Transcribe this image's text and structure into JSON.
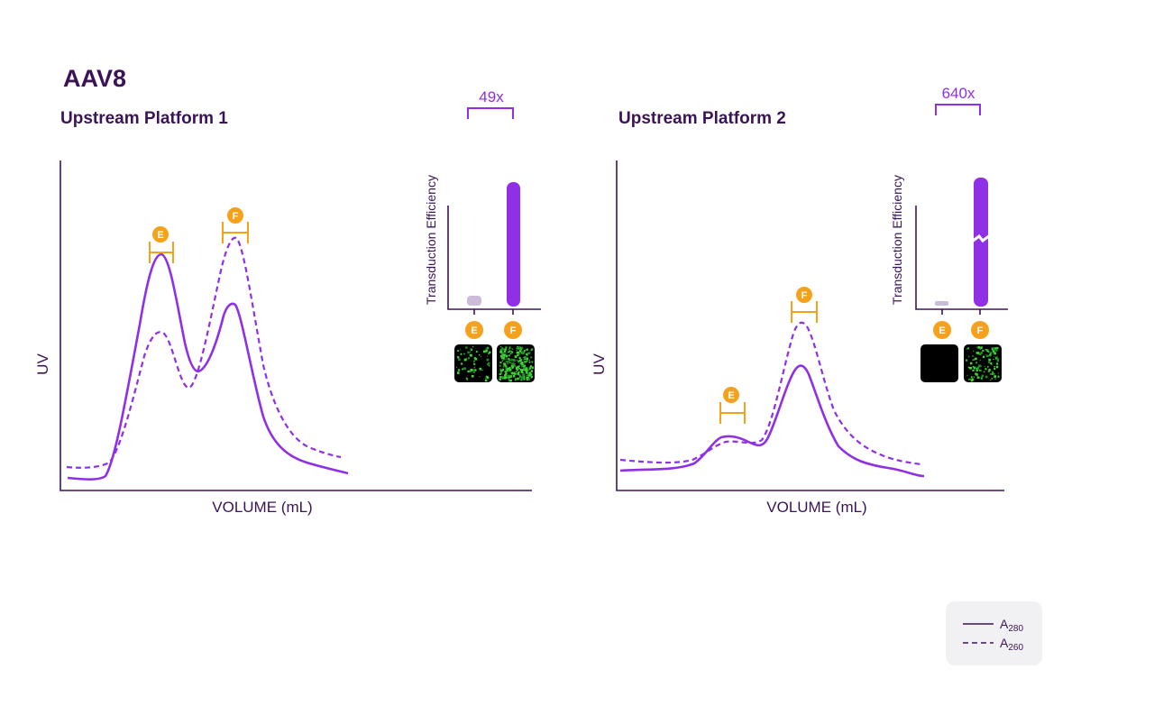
{
  "title": "AAV8",
  "panels": [
    {
      "title": "Upstream Platform 1",
      "x_label": "VOLUME (mL)",
      "y_label": "UV",
      "peak_labels": [
        "E",
        "F"
      ],
      "inset": {
        "y_label": "Transduction Efficiency",
        "categories": [
          "E",
          "F"
        ],
        "fold_change": "49x"
      }
    },
    {
      "title": "Upstream Platform 2",
      "x_label": "VOLUME (mL)",
      "y_label": "UV",
      "peak_labels": [
        "E",
        "F"
      ],
      "inset": {
        "y_label": "Transduction Efficiency",
        "categories": [
          "E",
          "F"
        ],
        "fold_change": "640x"
      }
    }
  ],
  "legend": [
    {
      "label": "A",
      "sub": "280"
    },
    {
      "label": "A",
      "sub": "260"
    }
  ]
}
